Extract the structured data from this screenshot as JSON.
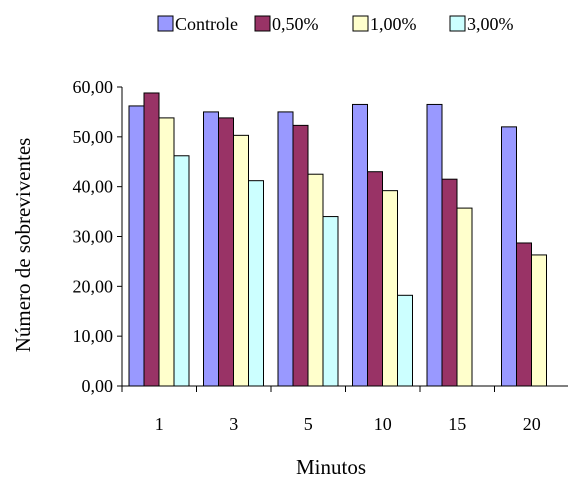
{
  "chart_data": {
    "type": "bar",
    "title": "",
    "xlabel": "Minutos",
    "ylabel": "Número de sobreviventes",
    "categories": [
      "1",
      "3",
      "5",
      "10",
      "15",
      "20"
    ],
    "ylim": [
      0,
      60
    ],
    "yticks": [
      "0,00",
      "10,00",
      "20,00",
      "30,00",
      "40,00",
      "50,00",
      "60,00"
    ],
    "grid": false,
    "legend_position": "top",
    "series": [
      {
        "name": "Controle",
        "color": "#9999ff",
        "values": [
          56.2,
          55.0,
          55.0,
          56.5,
          56.5,
          52.0
        ]
      },
      {
        "name": "0,50%",
        "color": "#993366",
        "values": [
          58.8,
          53.8,
          52.3,
          43.0,
          41.5,
          28.7
        ]
      },
      {
        "name": "1,00%",
        "color": "#ffffcc",
        "values": [
          53.8,
          50.3,
          42.5,
          39.2,
          35.7,
          26.3
        ]
      },
      {
        "name": "3,00%",
        "color": "#ccffff",
        "values": [
          46.2,
          41.2,
          34.0,
          18.2,
          0,
          0
        ]
      }
    ]
  }
}
